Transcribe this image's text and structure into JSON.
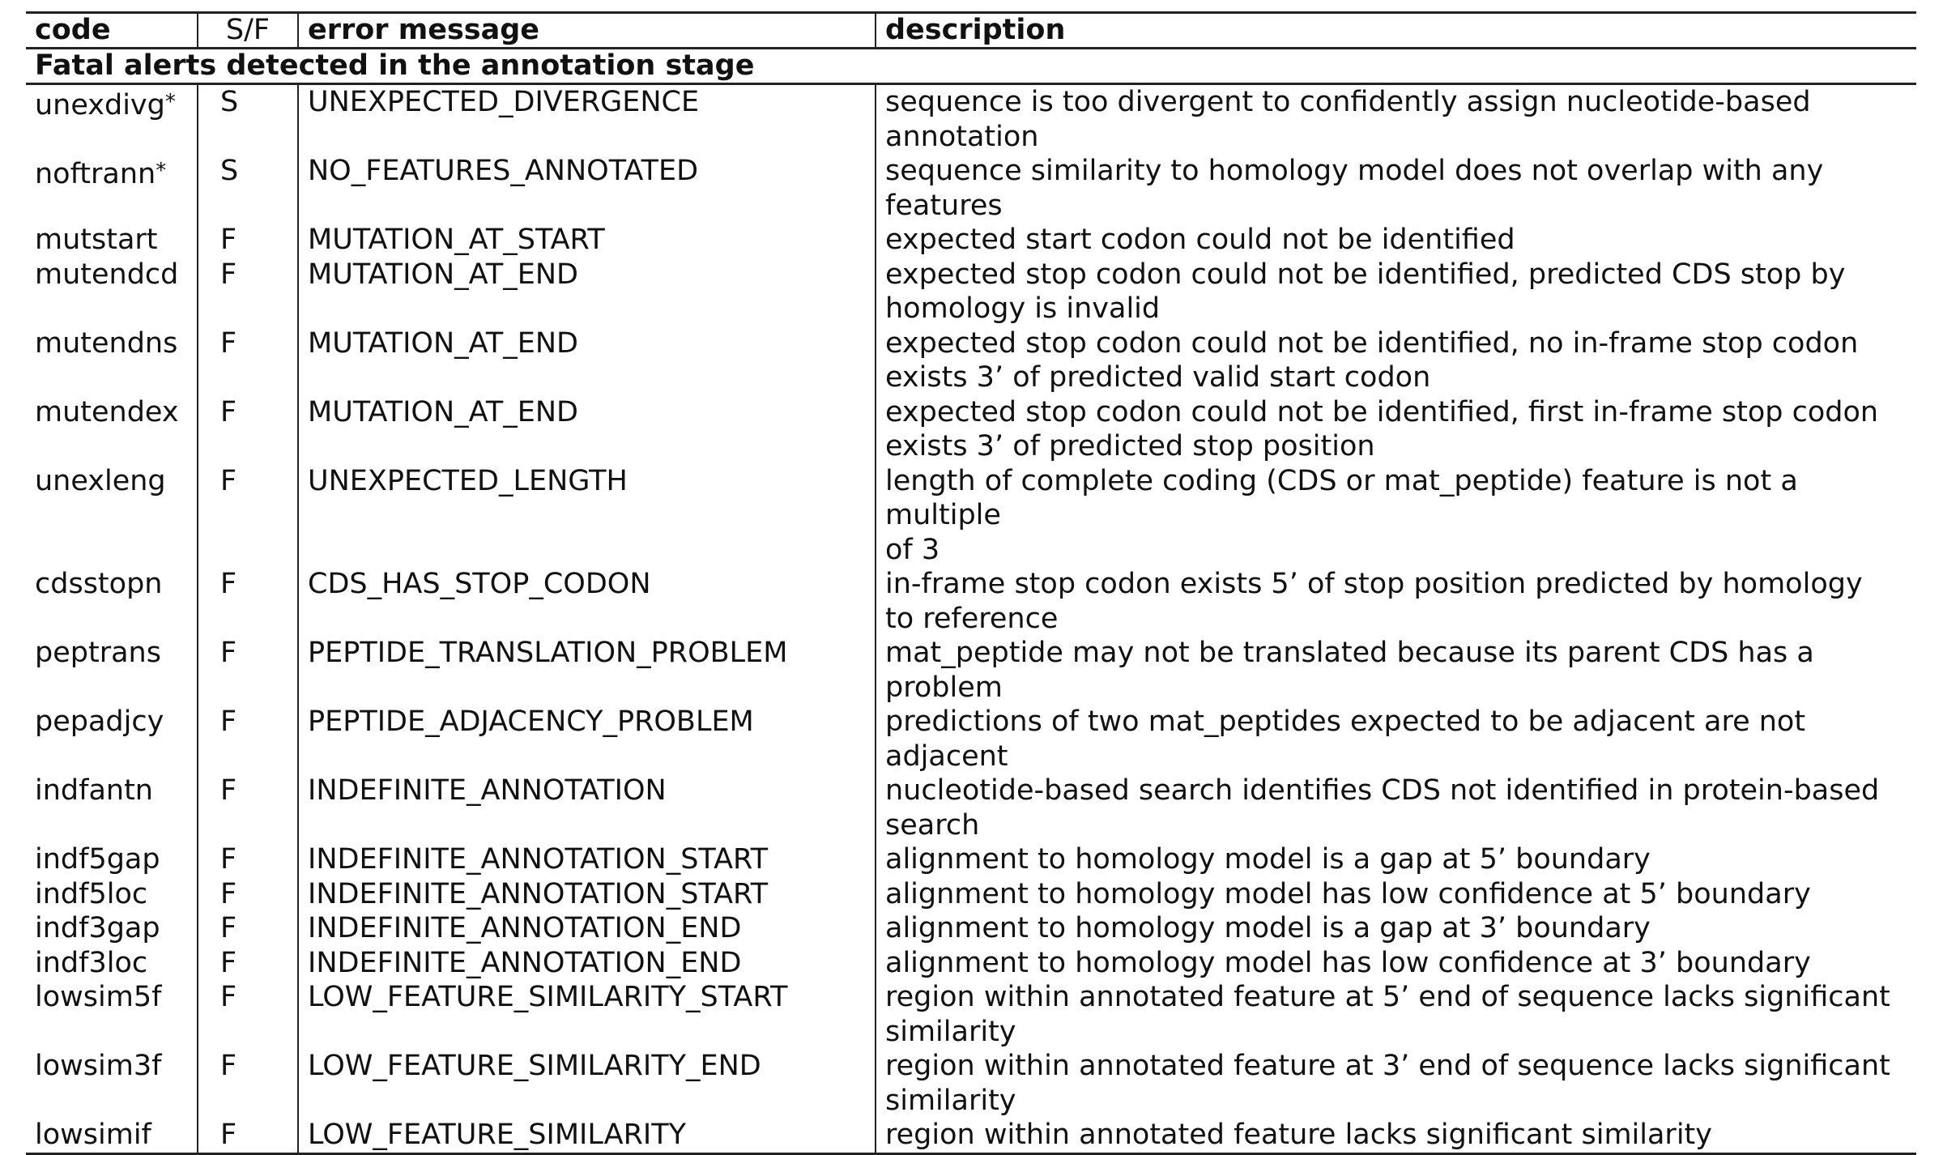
{
  "table": {
    "headers": {
      "code": "code",
      "sf": "S/F",
      "error": "error message",
      "description": "description"
    },
    "section_title": "Fatal alerts detected in the annotation stage",
    "rows": [
      {
        "code": "unexdivg*",
        "sf": "S",
        "error": "UNEXPECTED_DIVERGENCE",
        "description": "sequence is too divergent to confidently assign nucleotide-based annotation"
      },
      {
        "code": "noftrann*",
        "sf": "S",
        "error": "NO_FEATURES_ANNOTATED",
        "description": "sequence similarity to homology model does not overlap with any features"
      },
      {
        "code": "mutstart",
        "sf": "F",
        "error": "MUTATION_AT_START",
        "description": "expected start codon could not be identified"
      },
      {
        "code": "mutendcd",
        "sf": "F",
        "error": "MUTATION_AT_END",
        "description": "expected stop codon could not be identified, predicted CDS stop by\nhomology is invalid"
      },
      {
        "code": "mutendns",
        "sf": "F",
        "error": "MUTATION_AT_END",
        "description": "expected stop codon could not be identified, no in-frame stop codon\nexists 3’ of predicted valid start codon"
      },
      {
        "code": "mutendex",
        "sf": "F",
        "error": "MUTATION_AT_END",
        "description": "expected stop codon could not be identified, first in-frame stop codon\nexists 3’ of predicted stop position"
      },
      {
        "code": "unexleng",
        "sf": "F",
        "error": "UNEXPECTED_LENGTH",
        "description": "length of complete coding (CDS or mat_peptide) feature is not a multiple\nof 3"
      },
      {
        "code": "cdsstopn",
        "sf": "F",
        "error": "CDS_HAS_STOP_CODON",
        "description": "in-frame stop codon exists 5’ of stop position predicted by homology\nto reference"
      },
      {
        "code": "peptrans",
        "sf": "F",
        "error": "PEPTIDE_TRANSLATION_PROBLEM",
        "description": "mat_peptide may not be translated because its parent CDS has a problem"
      },
      {
        "code": "pepadjcy",
        "sf": "F",
        "error": "PEPTIDE_ADJACENCY_PROBLEM",
        "description": "predictions of two mat_peptides expected to be adjacent are not adjacent"
      },
      {
        "code": "indfantn",
        "sf": "F",
        "error": "INDEFINITE_ANNOTATION",
        "description": "nucleotide-based search identifies CDS not identified in protein-based\nsearch"
      },
      {
        "code": "indf5gap",
        "sf": "F",
        "error": "INDEFINITE_ANNOTATION_START",
        "description": "alignment to homology model is a gap at 5’ boundary"
      },
      {
        "code": "indf5loc",
        "sf": "F",
        "error": "INDEFINITE_ANNOTATION_START",
        "description": "alignment to homology model has low confidence at 5’ boundary"
      },
      {
        "code": "indf3gap",
        "sf": "F",
        "error": "INDEFINITE_ANNOTATION_END",
        "description": "alignment to homology model is a gap at 3’ boundary"
      },
      {
        "code": "indf3loc",
        "sf": "F",
        "error": "INDEFINITE_ANNOTATION_END",
        "description": "alignment to homology model has low confidence at 3’ boundary"
      },
      {
        "code": "lowsim5f",
        "sf": "F",
        "error": "LOW_FEATURE_SIMILARITY_START",
        "description": "region within annotated feature at 5’ end of sequence lacks significant\nsimilarity"
      },
      {
        "code": "lowsim3f",
        "sf": "F",
        "error": "LOW_FEATURE_SIMILARITY_END",
        "description": "region within annotated feature at 3’ end of sequence lacks significant\nsimilarity"
      },
      {
        "code": "lowsimif",
        "sf": "F",
        "error": "LOW_FEATURE_SIMILARITY",
        "description": "region within annotated feature lacks significant similarity"
      }
    ]
  }
}
